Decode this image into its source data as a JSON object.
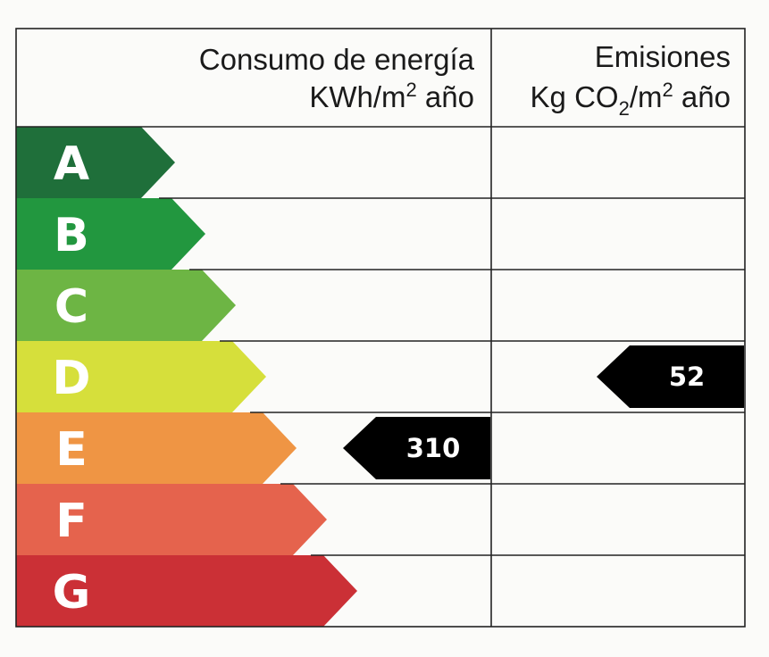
{
  "header": {
    "energy_title": "Consumo de energía",
    "energy_unit_a": "KWh/m",
    "energy_unit_sup": "2",
    "energy_unit_b": " año",
    "emissions_title": "Emisiones",
    "emissions_unit_a": "Kg CO",
    "emissions_unit_sub": "2",
    "emissions_unit_b": "/m",
    "emissions_unit_sup": "2",
    "emissions_unit_c": " año"
  },
  "chart_data": {
    "type": "table",
    "ratings": [
      {
        "letter": "A",
        "color": "#1f6f3a"
      },
      {
        "letter": "B",
        "color": "#22973f"
      },
      {
        "letter": "C",
        "color": "#6db544"
      },
      {
        "letter": "D",
        "color": "#d6df3b"
      },
      {
        "letter": "E",
        "color": "#ef9544"
      },
      {
        "letter": "F",
        "color": "#e5634d"
      },
      {
        "letter": "G",
        "color": "#cb3036"
      }
    ],
    "energy_consumption": {
      "value": "310",
      "rating": "E"
    },
    "emissions": {
      "value": "52",
      "rating": "D"
    },
    "marker_color": "#000000"
  }
}
